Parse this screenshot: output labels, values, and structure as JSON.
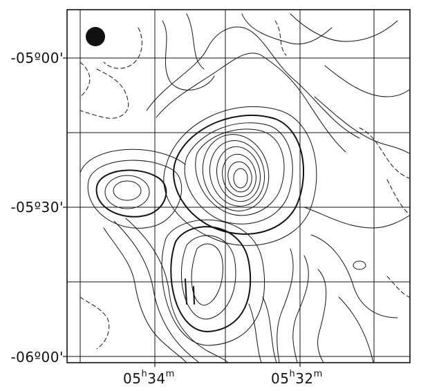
{
  "figure": {
    "y_axis": {
      "labels": [
        "-05º00'",
        "-05º30'",
        "-06º00'"
      ]
    },
    "x_axis": {
      "labels": [
        {
          "base": "05",
          "h": "h",
          "mid": "34",
          "m": "m"
        },
        {
          "base": "05",
          "h": "h",
          "mid": "32",
          "m": "m"
        }
      ]
    },
    "beam_marker": "filled-circle",
    "colors": {
      "ink": "#111111",
      "background": "#ffffff"
    }
  }
}
